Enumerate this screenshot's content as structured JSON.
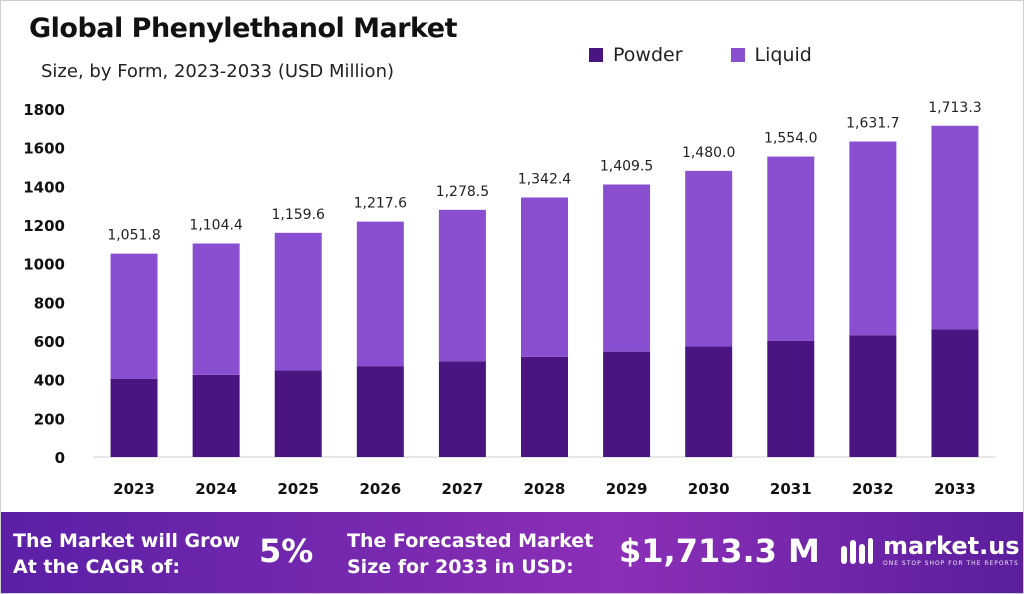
{
  "header": {
    "title": "Global Phenylethanol Market",
    "subtitle": "Size, by Form, 2023-2033 (USD Million)"
  },
  "legend": [
    {
      "label": "Powder",
      "color": "#4a1580"
    },
    {
      "label": "Liquid",
      "color": "#8a4fd0"
    }
  ],
  "chart_data": {
    "type": "bar",
    "stacked": true,
    "categories": [
      "2023",
      "2024",
      "2025",
      "2026",
      "2027",
      "2028",
      "2029",
      "2030",
      "2031",
      "2032",
      "2033"
    ],
    "series": [
      {
        "name": "Powder",
        "color": "#4a1580",
        "values": [
          405,
          425,
          448,
          470,
          495,
          518,
          545,
          572,
          600,
          630,
          660
        ]
      },
      {
        "name": "Liquid",
        "color": "#8a4fd0",
        "values": [
          646.8,
          679.4,
          711.6,
          747.6,
          783.5,
          824.4,
          864.5,
          908.0,
          954.0,
          1001.7,
          1053.3
        ]
      }
    ],
    "totals_labels": [
      "1,051.8",
      "1,104.4",
      "1,159.6",
      "1,217.6",
      "1,278.5",
      "1,342.4",
      "1,409.5",
      "1,480.0",
      "1,554.0",
      "1,631.7",
      "1,713.3"
    ],
    "totals": [
      1051.8,
      1104.4,
      1159.6,
      1217.6,
      1278.5,
      1342.4,
      1409.5,
      1480.0,
      1554.0,
      1631.7,
      1713.3
    ],
    "yticks": [
      0,
      200,
      400,
      600,
      800,
      1000,
      1200,
      1400,
      1600,
      1800
    ],
    "ylim": [
      0,
      1800
    ],
    "grid": false,
    "legend_position": "top-right"
  },
  "footer": {
    "cagr_label_line1": "The Market will Grow",
    "cagr_label_line2": "At the CAGR of:",
    "cagr_value": "5%",
    "forecast_label_line1": "The Forecasted Market",
    "forecast_label_line2": "Size for 2033 in USD:",
    "forecast_value": "$1,713.3 M",
    "brand_name": "market.us",
    "brand_tagline": "ONE STOP SHOP FOR THE REPORTS"
  }
}
